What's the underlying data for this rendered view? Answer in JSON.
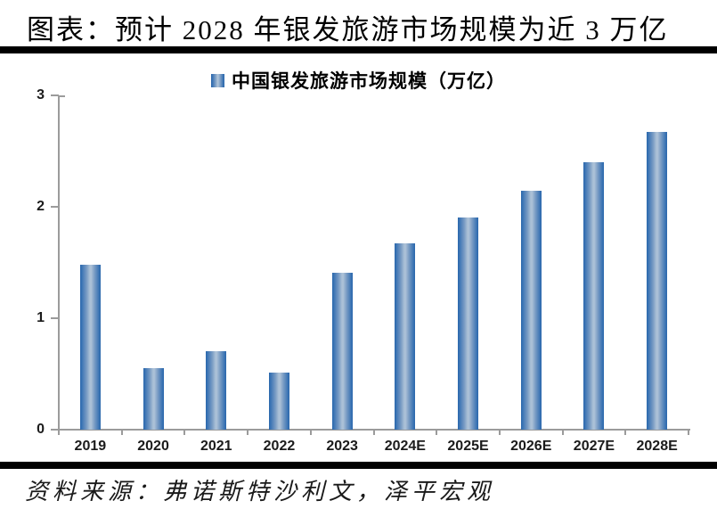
{
  "header": {
    "title": "图表：预计 2028 年银发旅游市场规模为近 3 万亿"
  },
  "legend": {
    "label": "中国银发旅游市场规模（万亿）",
    "marker": "gradient-blue-square"
  },
  "footer": {
    "source": "资料来源：弗诺斯特沙利文，泽平宏观"
  },
  "colors": {
    "bar_edge": "#2A66AC",
    "bar_center": "#ADC2D8",
    "axis": "#9B9B9B",
    "text": "#1B1B1B",
    "rule": "#000000",
    "background": "#FFFFFF"
  },
  "chart_data": {
    "type": "bar",
    "title": "预计 2028 年银发旅游市场规模为近 3 万亿",
    "legend": [
      "中国银发旅游市场规模（万亿）"
    ],
    "categories": [
      "2019",
      "2020",
      "2021",
      "2022",
      "2023",
      "2024E",
      "2025E",
      "2026E",
      "2027E",
      "2028E"
    ],
    "values": [
      1.48,
      0.55,
      0.7,
      0.51,
      1.41,
      1.67,
      1.9,
      2.14,
      2.4,
      2.67
    ],
    "xlabel": "",
    "ylabel": "",
    "ylim": [
      0,
      3
    ],
    "yticks": [
      0,
      1,
      2,
      3
    ],
    "grid": false,
    "legend_position": "top-center",
    "unit": "万亿"
  }
}
